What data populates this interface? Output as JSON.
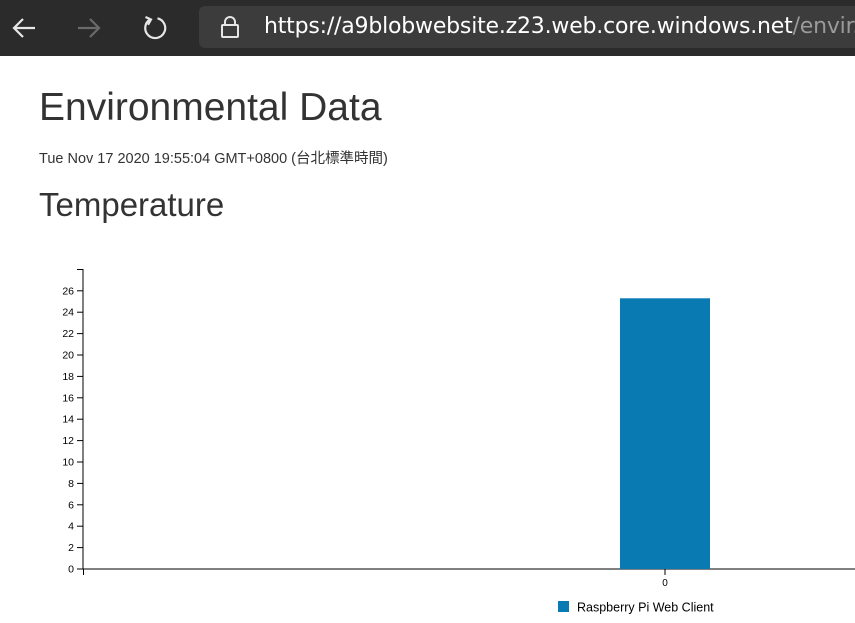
{
  "browser": {
    "url_host": "https://a9blobwebsite.z23.web.core.windows.net",
    "url_path": "/envir..."
  },
  "page": {
    "title": "Environmental Data",
    "timestamp": "Tue Nov 17 2020 19:55:04 GMT+0800 (台北標準時間)",
    "section_title": "Temperature"
  },
  "chart_data": {
    "type": "bar",
    "categories": [
      "0"
    ],
    "series": [
      {
        "name": "Raspberry Pi Web Client",
        "values": [
          25.3
        ],
        "color": "#0a7ab3"
      }
    ],
    "yticks": [
      0,
      2,
      4,
      6,
      8,
      10,
      12,
      14,
      16,
      18,
      20,
      22,
      24,
      26
    ],
    "ylim": [
      0,
      28
    ],
    "grid": false,
    "legend_position": "bottom-center"
  }
}
